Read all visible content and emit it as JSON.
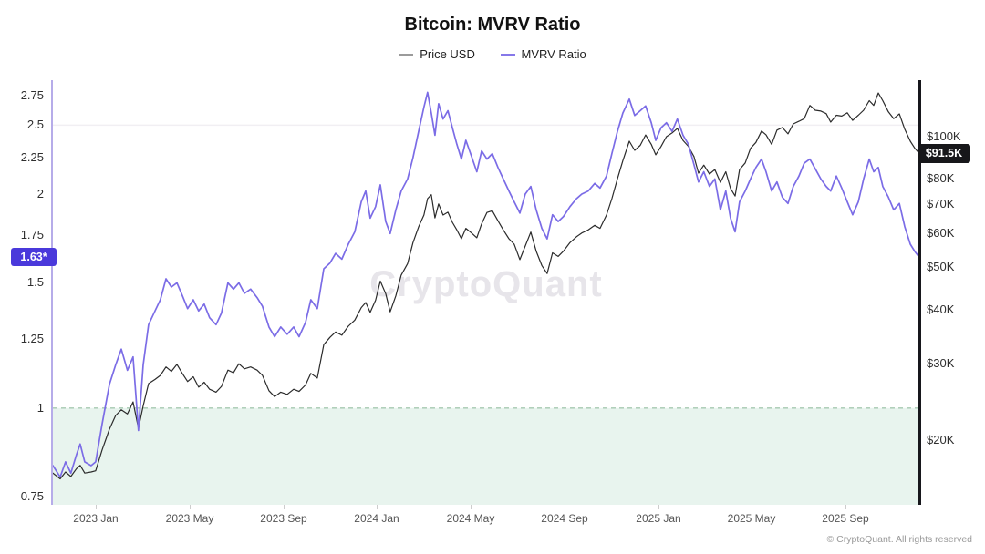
{
  "title": "Bitcoin: MVRV Ratio",
  "legend": [
    {
      "label": "Price USD",
      "color": "#9b9b9b"
    },
    {
      "label": "MVRV Ratio",
      "color": "#8678e9"
    }
  ],
  "watermark": "CryptoQuant",
  "footer": "© CryptoQuant. All rights reserved",
  "badges": {
    "mvrv": {
      "label": "1.63*",
      "value": 1.63,
      "bg": "#4a39db"
    },
    "price": {
      "label": "$91.5K",
      "value": 91.5,
      "bg": "#17171a"
    }
  },
  "chart_data": {
    "type": "line",
    "title": "Bitcoin: MVRV Ratio",
    "legend_position": "top",
    "x_range": [
      2022.848,
      2025.928
    ],
    "left_axis": {
      "label": "MVRV Ratio",
      "scale": "log",
      "min": 0.731,
      "max": 2.892,
      "color": "#b6ace9",
      "gridlines": [
        2.5
      ],
      "ticks": [
        {
          "value": 2.75,
          "label": "2.75"
        },
        {
          "value": 2.5,
          "label": "2.5"
        },
        {
          "value": 2.25,
          "label": "2.25"
        },
        {
          "value": 2,
          "label": "2"
        },
        {
          "value": 1.75,
          "label": "1.75"
        },
        {
          "value": 1.5,
          "label": "1.5"
        },
        {
          "value": 1.25,
          "label": "1.25"
        },
        {
          "value": 1,
          "label": "1"
        },
        {
          "value": 0.75,
          "label": "0.75"
        }
      ]
    },
    "right_axis": {
      "label": "Price USD",
      "scale": "log",
      "min": 14.2,
      "max": 134.9,
      "unit": "thousand USD",
      "color": "#17171c",
      "ticks": [
        {
          "value": 100,
          "label": "$100K"
        },
        {
          "value": 80,
          "label": "$80K"
        },
        {
          "value": 70,
          "label": "$70K"
        },
        {
          "value": 60,
          "label": "$60K"
        },
        {
          "value": 50,
          "label": "$50K"
        },
        {
          "value": 40,
          "label": "$40K"
        },
        {
          "value": 30,
          "label": "$30K"
        },
        {
          "value": 20,
          "label": "$20K"
        }
      ]
    },
    "x_ticks": [
      {
        "value": 2023.0,
        "label": "2023 Jan"
      },
      {
        "value": 2023.333,
        "label": "2023 May"
      },
      {
        "value": 2023.667,
        "label": "2023 Sep"
      },
      {
        "value": 2024.0,
        "label": "2024 Jan"
      },
      {
        "value": 2024.333,
        "label": "2024 May"
      },
      {
        "value": 2024.667,
        "label": "2024 Sep"
      },
      {
        "value": 2025.0,
        "label": "2025 Jan"
      },
      {
        "value": 2025.333,
        "label": "2025 May"
      },
      {
        "value": 2025.667,
        "label": "2025 Sep"
      }
    ],
    "threshold": {
      "value": 1,
      "zone_below": true
    },
    "colors": {
      "zone": "#e8f4ee",
      "threshold": "#a6c9b1",
      "gridline": "#f1eff3"
    },
    "x": [
      2022.848,
      2022.874,
      2022.893,
      2022.912,
      2022.932,
      2022.945,
      2022.961,
      2022.984,
      2023.0,
      2023.023,
      2023.049,
      2023.071,
      2023.091,
      2023.113,
      2023.133,
      2023.152,
      2023.169,
      2023.188,
      2023.211,
      2023.23,
      2023.25,
      2023.269,
      2023.289,
      2023.308,
      2023.327,
      2023.347,
      2023.366,
      2023.386,
      2023.405,
      2023.428,
      2023.447,
      2023.47,
      2023.49,
      2023.509,
      2023.529,
      2023.551,
      2023.574,
      2023.593,
      2023.616,
      2023.636,
      2023.658,
      2023.681,
      2023.704,
      2023.723,
      2023.746,
      2023.765,
      2023.788,
      2023.811,
      2023.833,
      2023.853,
      2023.875,
      2023.898,
      2023.921,
      2023.944,
      2023.96,
      2023.976,
      2023.995,
      2024.012,
      2024.031,
      2024.047,
      2024.067,
      2024.086,
      2024.109,
      2024.128,
      2024.148,
      2024.167,
      2024.18,
      2024.193,
      2024.206,
      2024.219,
      2024.235,
      2024.252,
      2024.268,
      2024.284,
      2024.3,
      2024.316,
      2024.336,
      2024.355,
      2024.372,
      2024.391,
      2024.41,
      2024.43,
      2024.449,
      2024.469,
      2024.488,
      2024.508,
      2024.527,
      2024.547,
      2024.566,
      2024.586,
      2024.605,
      2024.624,
      2024.644,
      2024.663,
      2024.686,
      2024.709,
      2024.728,
      2024.751,
      2024.774,
      2024.793,
      2024.816,
      2024.835,
      2024.855,
      2024.874,
      2024.897,
      2024.916,
      2024.936,
      2024.955,
      2024.975,
      2024.991,
      2025.01,
      2025.029,
      2025.049,
      2025.068,
      2025.088,
      2025.107,
      2025.127,
      2025.143,
      2025.162,
      2025.182,
      2025.201,
      2025.221,
      2025.24,
      2025.257,
      2025.273,
      2025.289,
      2025.309,
      2025.328,
      2025.347,
      2025.367,
      2025.383,
      2025.403,
      2025.422,
      2025.441,
      2025.461,
      2025.48,
      2025.5,
      2025.519,
      2025.539,
      2025.558,
      2025.578,
      2025.597,
      2025.613,
      2025.633,
      2025.652,
      2025.672,
      2025.691,
      2025.711,
      2025.73,
      2025.75,
      2025.766,
      2025.782,
      2025.798,
      2025.818,
      2025.837,
      2025.857,
      2025.876,
      2025.896,
      2025.912,
      2025.928
    ],
    "series": [
      {
        "name": "Price USD",
        "axis": "right",
        "color": "#2b2b2b",
        "width": 1.2,
        "values": [
          16.8,
          16.3,
          16.9,
          16.5,
          17.2,
          17.5,
          16.8,
          16.9,
          17.0,
          19.0,
          21.2,
          22.8,
          23.5,
          23.0,
          24.5,
          21.3,
          24.0,
          27.0,
          27.6,
          28.2,
          29.5,
          28.8,
          29.9,
          28.5,
          27.3,
          28.0,
          26.5,
          27.2,
          26.2,
          25.8,
          26.6,
          29.0,
          28.6,
          30.0,
          29.2,
          29.5,
          29.0,
          28.2,
          26.0,
          25.2,
          25.8,
          25.5,
          26.2,
          25.9,
          26.8,
          28.5,
          27.8,
          33.2,
          34.5,
          35.5,
          34.9,
          36.6,
          37.8,
          40.4,
          41.5,
          39.4,
          42.0,
          46.5,
          43.5,
          39.5,
          43.0,
          48.0,
          51.0,
          57.0,
          62.0,
          66.0,
          72.0,
          73.5,
          65.0,
          70.0,
          66.0,
          67.0,
          63.5,
          61.0,
          58.2,
          61.5,
          60.0,
          58.5,
          63.0,
          66.9,
          67.5,
          64.0,
          61.0,
          58.2,
          56.5,
          52.1,
          56.0,
          60.3,
          54.5,
          50.5,
          48.4,
          54.0,
          53.0,
          54.5,
          57.0,
          58.8,
          60.0,
          61.0,
          62.5,
          61.5,
          66.0,
          72.0,
          80.0,
          88.0,
          97.6,
          93.0,
          95.5,
          100.9,
          96.0,
          90.8,
          95.0,
          100.0,
          102.0,
          104.5,
          98.0,
          95.0,
          90.0,
          82.4,
          86.0,
          82.0,
          84.0,
          78.5,
          83.0,
          76.0,
          73.0,
          84.0,
          87.0,
          94.0,
          97.0,
          103.0,
          101.0,
          96.0,
          103.5,
          105.0,
          101.5,
          107.0,
          108.5,
          110.0,
          118.0,
          115.0,
          114.5,
          113.0,
          108.0,
          112.0,
          111.5,
          113.5,
          109.0,
          112.0,
          115.0,
          121.0,
          118.0,
          126.0,
          121.0,
          114.0,
          110.0,
          112.8,
          104.0,
          97.6,
          94.0,
          91.5
        ]
      },
      {
        "name": "MVRV Ratio",
        "axis": "left",
        "color": "#7b6ce6",
        "width": 1.7,
        "values": [
          0.83,
          0.8,
          0.84,
          0.81,
          0.86,
          0.89,
          0.84,
          0.83,
          0.84,
          0.95,
          1.08,
          1.15,
          1.21,
          1.13,
          1.18,
          0.93,
          1.15,
          1.31,
          1.37,
          1.42,
          1.52,
          1.48,
          1.5,
          1.44,
          1.38,
          1.42,
          1.37,
          1.4,
          1.34,
          1.31,
          1.36,
          1.5,
          1.47,
          1.5,
          1.45,
          1.47,
          1.43,
          1.39,
          1.3,
          1.26,
          1.3,
          1.27,
          1.3,
          1.26,
          1.32,
          1.42,
          1.38,
          1.57,
          1.6,
          1.65,
          1.62,
          1.7,
          1.77,
          1.95,
          2.02,
          1.85,
          1.92,
          2.06,
          1.83,
          1.76,
          1.9,
          2.02,
          2.1,
          2.25,
          2.45,
          2.65,
          2.78,
          2.6,
          2.42,
          2.68,
          2.55,
          2.62,
          2.48,
          2.35,
          2.24,
          2.38,
          2.26,
          2.15,
          2.3,
          2.24,
          2.28,
          2.18,
          2.1,
          2.02,
          1.95,
          1.88,
          2.0,
          2.05,
          1.9,
          1.79,
          1.73,
          1.87,
          1.83,
          1.86,
          1.92,
          1.97,
          2.0,
          2.02,
          2.07,
          2.04,
          2.12,
          2.28,
          2.45,
          2.6,
          2.72,
          2.58,
          2.62,
          2.66,
          2.52,
          2.38,
          2.48,
          2.52,
          2.45,
          2.55,
          2.42,
          2.35,
          2.2,
          2.08,
          2.15,
          2.05,
          2.1,
          1.9,
          2.02,
          1.85,
          1.77,
          1.95,
          2.02,
          2.1,
          2.18,
          2.24,
          2.15,
          2.02,
          2.08,
          1.98,
          1.94,
          2.05,
          2.12,
          2.21,
          2.24,
          2.17,
          2.1,
          2.05,
          2.02,
          2.12,
          2.04,
          1.95,
          1.87,
          1.95,
          2.1,
          2.24,
          2.15,
          2.18,
          2.05,
          1.98,
          1.9,
          1.94,
          1.8,
          1.7,
          1.66,
          1.63
        ]
      }
    ]
  }
}
